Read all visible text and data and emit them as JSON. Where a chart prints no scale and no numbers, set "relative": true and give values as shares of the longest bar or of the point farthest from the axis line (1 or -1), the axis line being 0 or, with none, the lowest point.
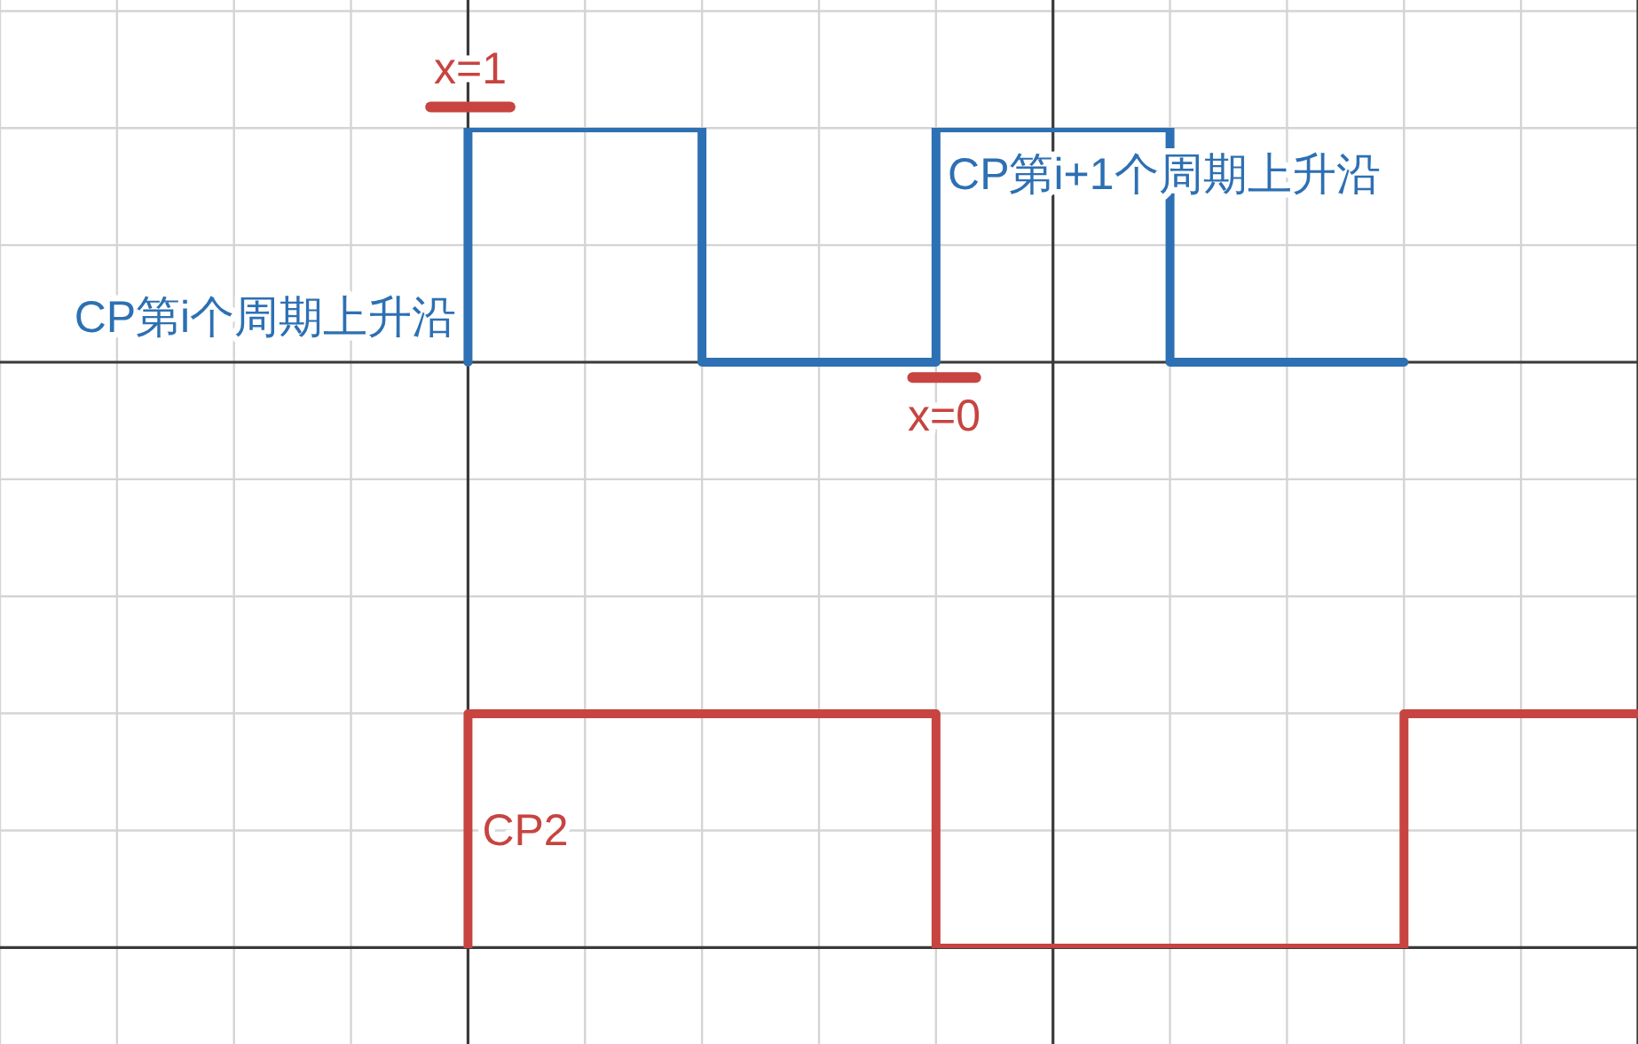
{
  "chart_data": {
    "type": "step",
    "relative": true,
    "grid": true,
    "categories": [
      null,
      null,
      null,
      null,
      null,
      null,
      null,
      null,
      null,
      null,
      null,
      null,
      null,
      null,
      null
    ],
    "series": [
      {
        "color": "#2d70b3",
        "values": [
          null,
          null,
          null,
          null,
          0,
          0.4,
          0.4,
          0,
          0,
          0.4,
          0.4,
          0,
          0,
          null,
          null
        ]
      },
      {
        "name": "CP2",
        "color": "#c74440",
        "values": [
          null,
          null,
          null,
          null,
          -1,
          -0.6,
          -0.6,
          -0.6,
          -0.6,
          -1,
          -1,
          -1,
          -1,
          -0.6,
          -0.6
        ]
      }
    ],
    "annotations": [
      "x=1",
      "x=0",
      "CP第i个周期上升沿",
      "CP第i+1个周期上升沿"
    ]
  }
}
